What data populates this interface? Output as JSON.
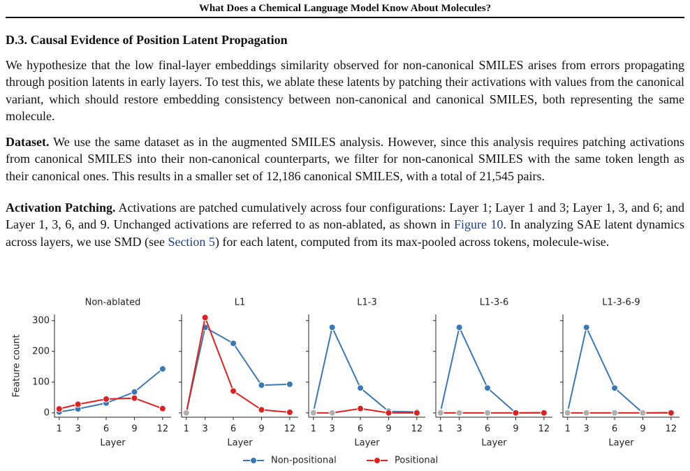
{
  "header": {
    "title": "What Does a Chemical Language Model Know About Molecules?"
  },
  "section": {
    "title": "D.3. Causal Evidence of Position Latent Propagation",
    "paragraphs": [
      {
        "text": "We hypothesize that the low final-layer embeddings similarity observed for non-canonical SMILES arises from errors propagating through position latents in early layers. To test this, we ablate these latents by patching their activations with values from the canonical variant, which should restore embedding consistency between non-canonical and canonical SMILES, both representing the same molecule."
      },
      {
        "lead": "Dataset.",
        "text": "We use the same dataset as in the augmented SMILES analysis. However, since this analysis requires patching activations from canonical SMILES into their non-canonical counterparts, we filter for non-canonical SMILES with the same token length as their canonical ones. This results in a smaller set of 12,186 canonical SMILES, with a total of 21,545 pairs."
      },
      {
        "lead": "Activation Patching.",
        "parts": [
          "Activations are patched cumulatively across four configurations: Layer 1; Layer 1 and 3; Layer 1, 3, and 6; and Layer 1, 3, 6, and 9. Unchanged activations are referred to as non-ablated, as shown in ",
          "Figure 10",
          ". In analyzing SAE latent dynamics across layers, we use SMD (see ",
          "Section 5",
          ") for each latent, computed from its max-pooled across tokens, molecule-wise."
        ]
      }
    ]
  },
  "chart_data": [
    {
      "type": "line",
      "title": "Non-ablated",
      "xlabel": "Layer",
      "ylabel": "Feature count",
      "x": [
        1,
        3,
        6,
        9,
        12
      ],
      "xticks": [
        1,
        3,
        6,
        9,
        12
      ],
      "xlim": [
        0.5,
        12.9
      ],
      "ylim": [
        -14,
        320
      ],
      "yticks": [
        0,
        100,
        200,
        300
      ],
      "ablated_color": "#b0b0b0",
      "series": [
        {
          "name": "Non-positional",
          "color": "#3a78b5",
          "values": [
            3,
            13,
            32,
            68,
            143
          ],
          "ablated": []
        },
        {
          "name": "Positional",
          "color": "#e0201f",
          "values": [
            13,
            28,
            45,
            48,
            14
          ],
          "ablated": []
        }
      ]
    },
    {
      "type": "line",
      "title": "L1",
      "xlabel": "Layer",
      "x": [
        1,
        3,
        6,
        9,
        12
      ],
      "xticks": [
        1,
        3,
        6,
        9,
        12
      ],
      "xlim": [
        0.5,
        12.9
      ],
      "ylim": [
        -14,
        320
      ],
      "yticks": [
        0,
        100,
        200,
        300
      ],
      "ablated_color": "#b0b0b0",
      "series": [
        {
          "name": "Non-positional",
          "color": "#3a78b5",
          "values": [
            0,
            278,
            226,
            90,
            93
          ],
          "ablated": [
            1
          ]
        },
        {
          "name": "Positional",
          "color": "#e0201f",
          "values": [
            0,
            310,
            71,
            10,
            2
          ],
          "ablated": [
            1
          ]
        }
      ]
    },
    {
      "type": "line",
      "title": "L1-3",
      "xlabel": "Layer",
      "x": [
        1,
        3,
        6,
        9,
        12
      ],
      "xticks": [
        1,
        3,
        6,
        9,
        12
      ],
      "xlim": [
        0.5,
        12.9
      ],
      "ylim": [
        -14,
        320
      ],
      "yticks": [
        0,
        100,
        200,
        300
      ],
      "ablated_color": "#b0b0b0",
      "series": [
        {
          "name": "Non-positional",
          "color": "#3a78b5",
          "values": [
            3,
            278,
            81,
            5,
            3
          ],
          "ablated": [
            1
          ]
        },
        {
          "name": "Positional",
          "color": "#e0201f",
          "values": [
            0,
            0,
            14,
            0,
            0
          ],
          "ablated": [
            1,
            3
          ]
        }
      ]
    },
    {
      "type": "line",
      "title": "L1-3-6",
      "xlabel": "Layer",
      "x": [
        1,
        3,
        6,
        9,
        12
      ],
      "xticks": [
        1,
        3,
        6,
        9,
        12
      ],
      "xlim": [
        0.5,
        12.9
      ],
      "ylim": [
        -14,
        320
      ],
      "yticks": [
        0,
        100,
        200,
        300
      ],
      "ablated_color": "#b0b0b0",
      "series": [
        {
          "name": "Non-positional",
          "color": "#3a78b5",
          "values": [
            3,
            278,
            81,
            0,
            1
          ],
          "ablated": [
            1
          ]
        },
        {
          "name": "Positional",
          "color": "#e0201f",
          "values": [
            0,
            0,
            0,
            0,
            0
          ],
          "ablated": [
            1,
            3,
            6
          ]
        }
      ]
    },
    {
      "type": "line",
      "title": "L1-3-6-9",
      "xlabel": "Layer",
      "x": [
        1,
        3,
        6,
        9,
        12
      ],
      "xticks": [
        1,
        3,
        6,
        9,
        12
      ],
      "xlim": [
        0.5,
        12.9
      ],
      "ylim": [
        -14,
        320
      ],
      "yticks": [
        0,
        100,
        200,
        300
      ],
      "ablated_color": "#b0b0b0",
      "series": [
        {
          "name": "Non-positional",
          "color": "#3a78b5",
          "values": [
            3,
            278,
            81,
            0,
            1
          ],
          "ablated": [
            1
          ]
        },
        {
          "name": "Positional",
          "color": "#e0201f",
          "values": [
            0,
            0,
            0,
            0,
            0
          ],
          "ablated": [
            1,
            3,
            6,
            9
          ]
        }
      ]
    }
  ]
}
